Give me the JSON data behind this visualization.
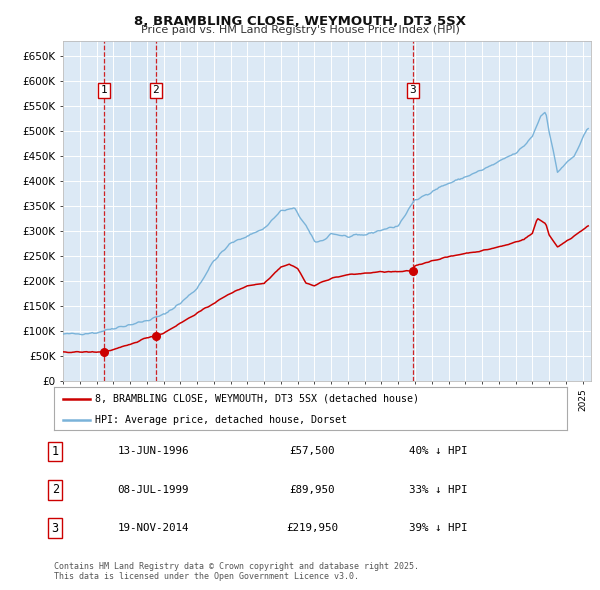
{
  "title": "8, BRAMBLING CLOSE, WEYMOUTH, DT3 5SX",
  "subtitle": "Price paid vs. HM Land Registry's House Price Index (HPI)",
  "plot_bg_color": "#dce9f5",
  "hpi_color": "#7ab3d9",
  "price_color": "#cc0000",
  "ylim": [
    0,
    680000
  ],
  "yticks": [
    0,
    50000,
    100000,
    150000,
    200000,
    250000,
    300000,
    350000,
    400000,
    450000,
    500000,
    550000,
    600000,
    650000
  ],
  "sale_years_float": [
    1996.458,
    1999.542,
    2014.875
  ],
  "sale_prices": [
    57500,
    89950,
    219950
  ],
  "sale_labels": [
    "1",
    "2",
    "3"
  ],
  "legend_price": "8, BRAMBLING CLOSE, WEYMOUTH, DT3 5SX (detached house)",
  "legend_hpi": "HPI: Average price, detached house, Dorset",
  "table_data": [
    [
      "1",
      "13-JUN-1996",
      "£57,500",
      "40% ↓ HPI"
    ],
    [
      "2",
      "08-JUL-1999",
      "£89,950",
      "33% ↓ HPI"
    ],
    [
      "3",
      "19-NOV-2014",
      "£219,950",
      "39% ↓ HPI"
    ]
  ],
  "footnote1": "Contains HM Land Registry data © Crown copyright and database right 2025.",
  "footnote2": "This data is licensed under the Open Government Licence v3.0.",
  "xstart": 1994.0,
  "xend": 2025.5,
  "hpi_key_times": [
    1994.0,
    1995.0,
    1996.0,
    1997.0,
    1998.0,
    1999.0,
    2000.0,
    2001.0,
    2002.0,
    2003.0,
    2004.0,
    2005.0,
    2006.0,
    2007.0,
    2007.8,
    2008.5,
    2009.0,
    2009.5,
    2010.0,
    2011.0,
    2012.0,
    2013.0,
    2014.0,
    2014.9,
    2015.5,
    2016.5,
    2017.0,
    2018.0,
    2019.0,
    2020.0,
    2020.5,
    2021.0,
    2021.5,
    2022.0,
    2022.5,
    2022.8,
    2023.0,
    2023.5,
    2024.0,
    2024.5,
    2025.3
  ],
  "hpi_key_vals": [
    93000,
    94000,
    96000,
    105000,
    112000,
    120000,
    132000,
    155000,
    185000,
    240000,
    275000,
    290000,
    305000,
    340000,
    345000,
    310000,
    278000,
    280000,
    295000,
    288000,
    292000,
    302000,
    310000,
    358000,
    370000,
    388000,
    395000,
    408000,
    422000,
    438000,
    448000,
    455000,
    470000,
    490000,
    530000,
    540000,
    500000,
    418000,
    435000,
    450000,
    505000
  ],
  "price_key_times": [
    1994.0,
    1995.0,
    1996.0,
    1996.458,
    1997.0,
    1998.0,
    1999.0,
    1999.542,
    2000.0,
    2001.0,
    2002.0,
    2003.0,
    2004.0,
    2005.0,
    2006.0,
    2007.0,
    2007.5,
    2008.0,
    2008.5,
    2009.0,
    2009.5,
    2010.0,
    2011.0,
    2012.0,
    2013.0,
    2014.0,
    2014.875,
    2015.0,
    2016.0,
    2017.0,
    2018.0,
    2019.0,
    2020.0,
    2020.5,
    2021.0,
    2021.5,
    2022.0,
    2022.3,
    2022.8,
    2023.0,
    2023.5,
    2024.0,
    2024.5,
    2025.3
  ],
  "price_key_vals": [
    57000,
    57200,
    57300,
    57500,
    62000,
    72000,
    86000,
    89950,
    95000,
    115000,
    135000,
    155000,
    175000,
    190000,
    195000,
    228000,
    233000,
    225000,
    195000,
    190000,
    198000,
    205000,
    212000,
    215000,
    218000,
    218000,
    219950,
    230000,
    240000,
    248000,
    255000,
    260000,
    268000,
    272000,
    278000,
    283000,
    295000,
    325000,
    315000,
    292000,
    268000,
    278000,
    290000,
    310000
  ]
}
